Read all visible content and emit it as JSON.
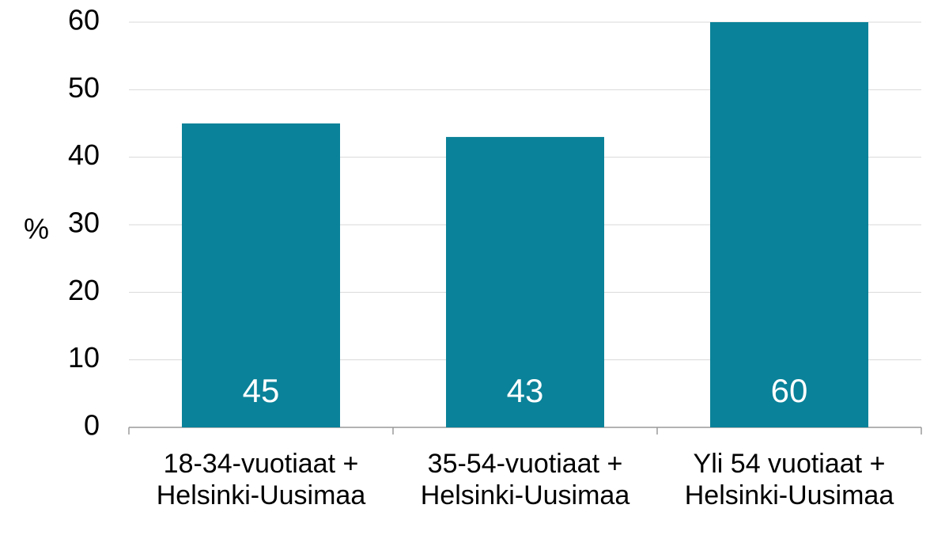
{
  "chart_data": {
    "type": "bar",
    "y_label": "%",
    "categories": [
      "18-34-vuotiaat + Helsinki-Uusimaa",
      "35-54-vuotiaat + Helsinki-Uusimaa",
      "Yli 54 vuotiaat + Helsinki-Uusimaa"
    ],
    "values": [
      45,
      43,
      60
    ],
    "color": "#0a8299",
    "ylim": [
      0,
      60
    ],
    "yticks": [
      0,
      10,
      20,
      30,
      40,
      50,
      60
    ],
    "grid": true
  }
}
